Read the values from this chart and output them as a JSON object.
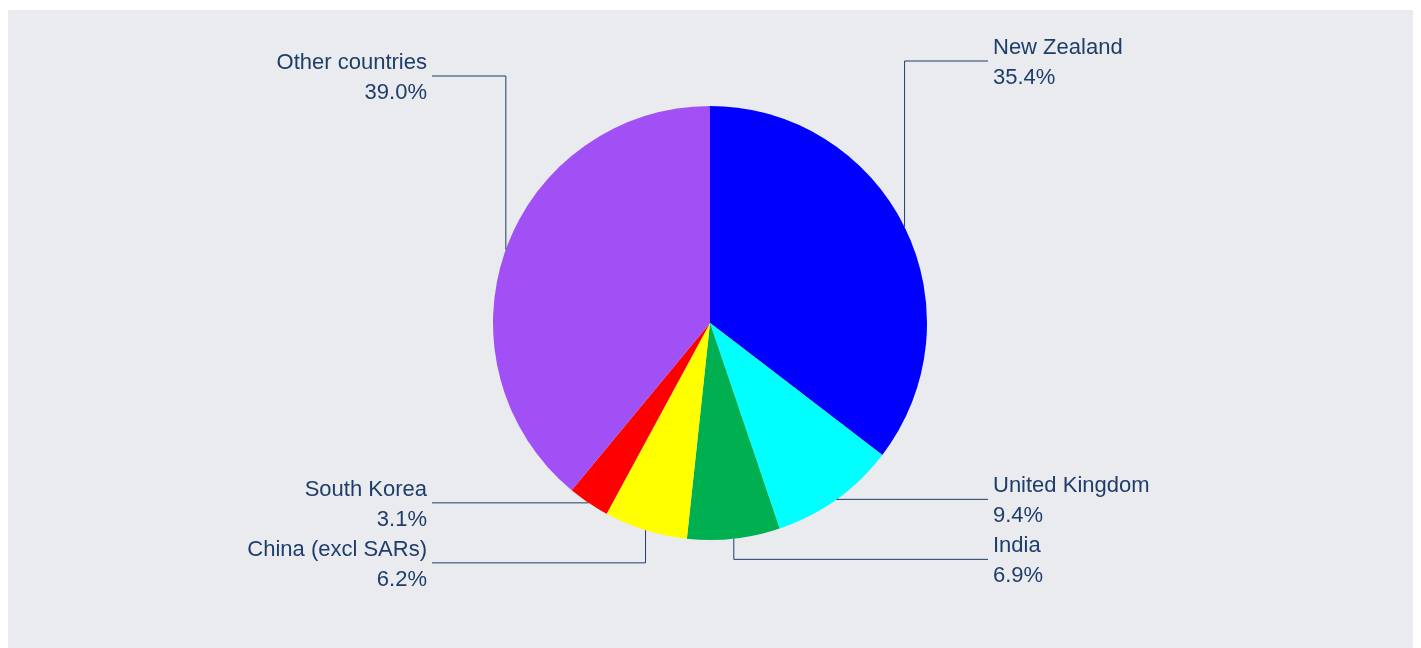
{
  "chart_data": {
    "type": "pie",
    "categories": [
      "New Zealand",
      "United Kingdom",
      "India",
      "China (excl SARs)",
      "South Korea",
      "Other countries"
    ],
    "values": [
      35.4,
      9.4,
      6.9,
      6.2,
      3.1,
      39.0
    ],
    "colors": [
      "#0000ff",
      "#00ffff",
      "#00b050",
      "#ffff00",
      "#ff0000",
      "#a050f5"
    ],
    "value_labels": [
      "35.4%",
      "9.4%",
      "6.9%",
      "6.2%",
      "3.1%",
      "39.0%"
    ]
  }
}
